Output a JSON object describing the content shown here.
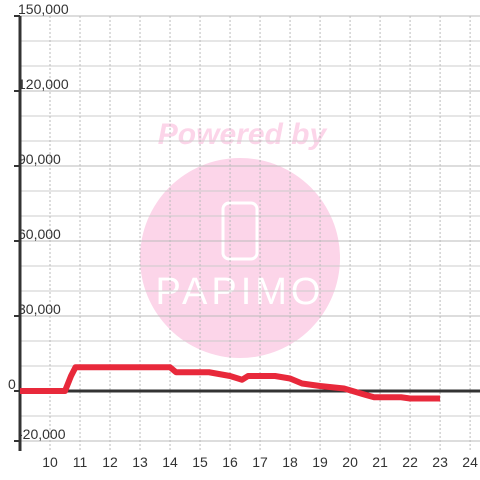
{
  "chart_data": {
    "type": "line",
    "x": [
      9,
      10.5,
      10.7,
      10.85,
      14,
      14.2,
      15.3,
      16,
      16.4,
      16.6,
      17.5,
      18,
      18.4,
      19,
      19.8,
      20.5,
      20.8,
      21.7,
      22,
      23
    ],
    "series": [
      {
        "color": "#e8293b",
        "values": [
          0,
          0,
          6000,
          9500,
          9500,
          7500,
          7500,
          6000,
          4500,
          6000,
          6000,
          5000,
          3000,
          2000,
          1000,
          -1500,
          -2500,
          -2500,
          -3000,
          -3000
        ]
      }
    ],
    "xlim": [
      9,
      24.33
    ],
    "xticks": [
      10,
      11,
      12,
      13,
      14,
      15,
      16,
      17,
      18,
      19,
      20,
      21,
      22,
      23,
      24
    ],
    "ylim": [
      -24000,
      150000
    ],
    "yticks": [
      {
        "value": -20000,
        "label": "-20,000"
      },
      0,
      {
        "value": 30000,
        "label": "30,000"
      },
      {
        "value": 60000,
        "label": "60,000"
      },
      {
        "value": 90000,
        "label": "90,000"
      },
      {
        "value": 120000,
        "label": "120,000"
      },
      {
        "value": 150000,
        "label": "150,000"
      }
    ],
    "minor_yticks": [
      -10000,
      10000,
      20000,
      40000,
      50000,
      70000,
      80000,
      100000,
      110000,
      130000,
      140000
    ],
    "grid": true,
    "watermark": {
      "line1": "Powered by",
      "line2": "PAPIMO"
    }
  }
}
